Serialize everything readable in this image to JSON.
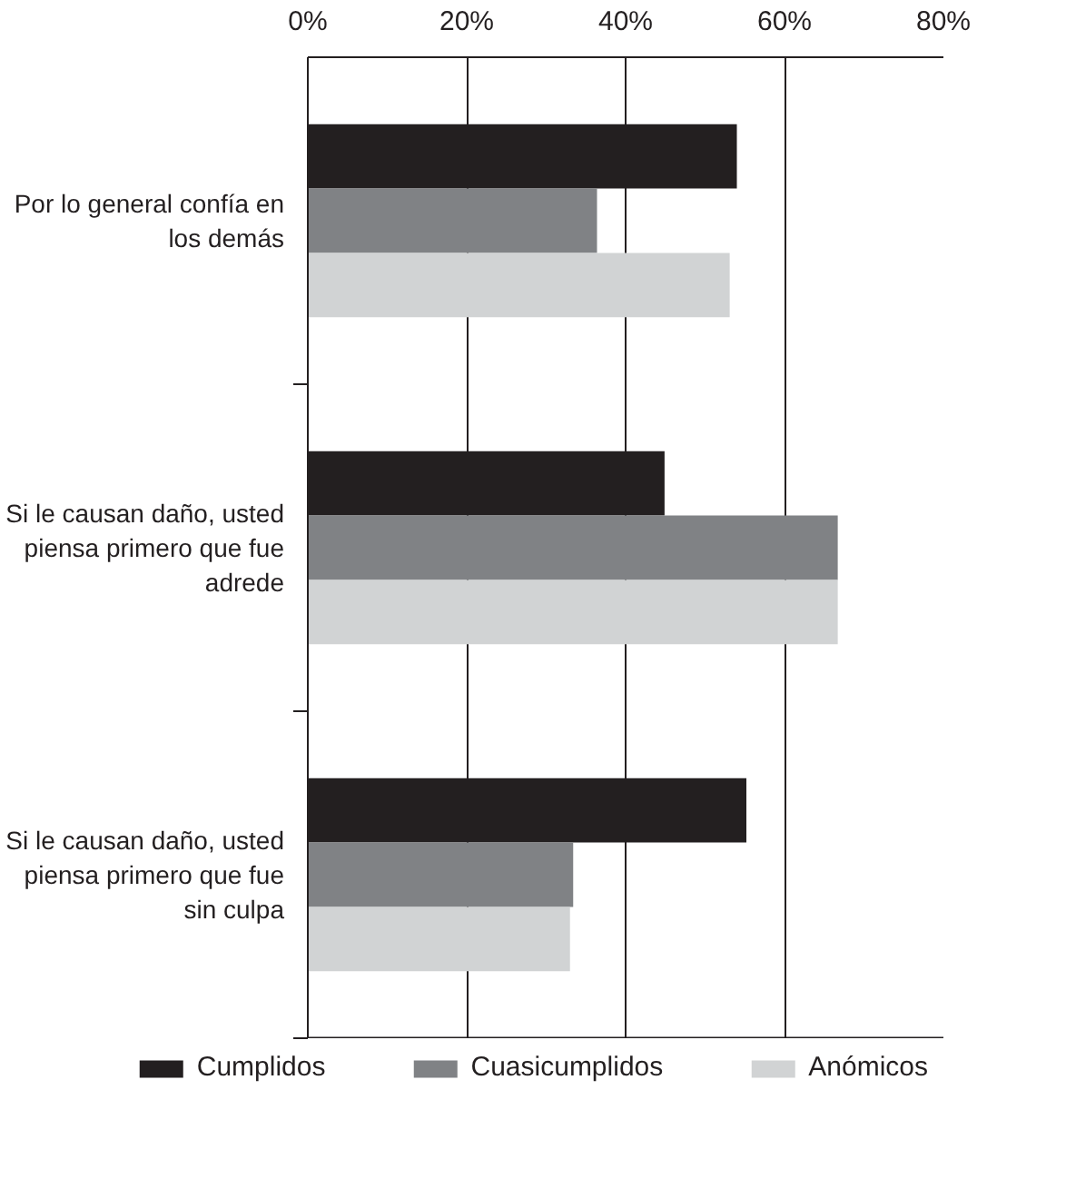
{
  "chart_data": {
    "type": "bar",
    "orientation": "horizontal",
    "categories": [
      "Por lo general confía en los demás",
      "Si le causan daño, usted piensa primero que fue adrede",
      "Si le causan daño, usted piensa primero que fue sin culpa"
    ],
    "series": [
      {
        "name": "Cumplidos",
        "color": "#231f20",
        "values": [
          54.0,
          44.9,
          55.2
        ]
      },
      {
        "name": "Cuasicumplidos",
        "color": "#808285",
        "values": [
          36.4,
          66.7,
          33.4
        ]
      },
      {
        "name": "Anómicos",
        "color": "#d1d3d4",
        "values": [
          53.1,
          66.7,
          33.0
        ]
      }
    ],
    "xlim": [
      0,
      80
    ],
    "xticks": [
      {
        "value": 0,
        "label": "0%"
      },
      {
        "value": 20,
        "label": "20%"
      },
      {
        "value": 40,
        "label": "40%"
      },
      {
        "value": 60,
        "label": "60%"
      },
      {
        "value": 80,
        "label": "80%"
      }
    ],
    "grid": "x",
    "legend": "bottom"
  }
}
